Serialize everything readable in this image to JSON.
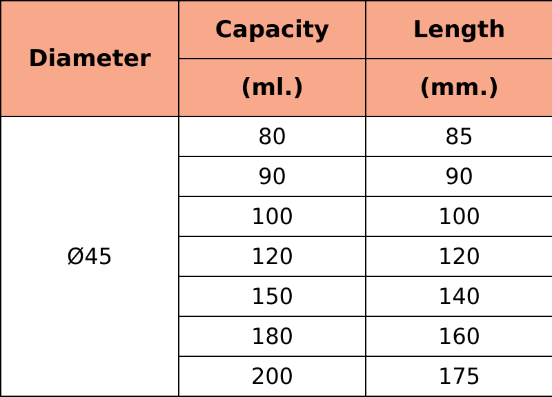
{
  "table": {
    "header": {
      "diameter": "Diameter",
      "capacity": "Capacity",
      "capacity_unit": "(ml.)",
      "length": "Length",
      "length_unit": "(mm.)"
    },
    "diameter_value": "Ø45",
    "rows": [
      {
        "capacity": "80",
        "length": "85"
      },
      {
        "capacity": "90",
        "length": "90"
      },
      {
        "capacity": "100",
        "length": "100"
      },
      {
        "capacity": "120",
        "length": "120"
      },
      {
        "capacity": "150",
        "length": "140"
      },
      {
        "capacity": "180",
        "length": "160"
      },
      {
        "capacity": "200",
        "length": "175"
      }
    ]
  },
  "colors": {
    "header_background": "#F8A98C",
    "border": "#000000"
  }
}
